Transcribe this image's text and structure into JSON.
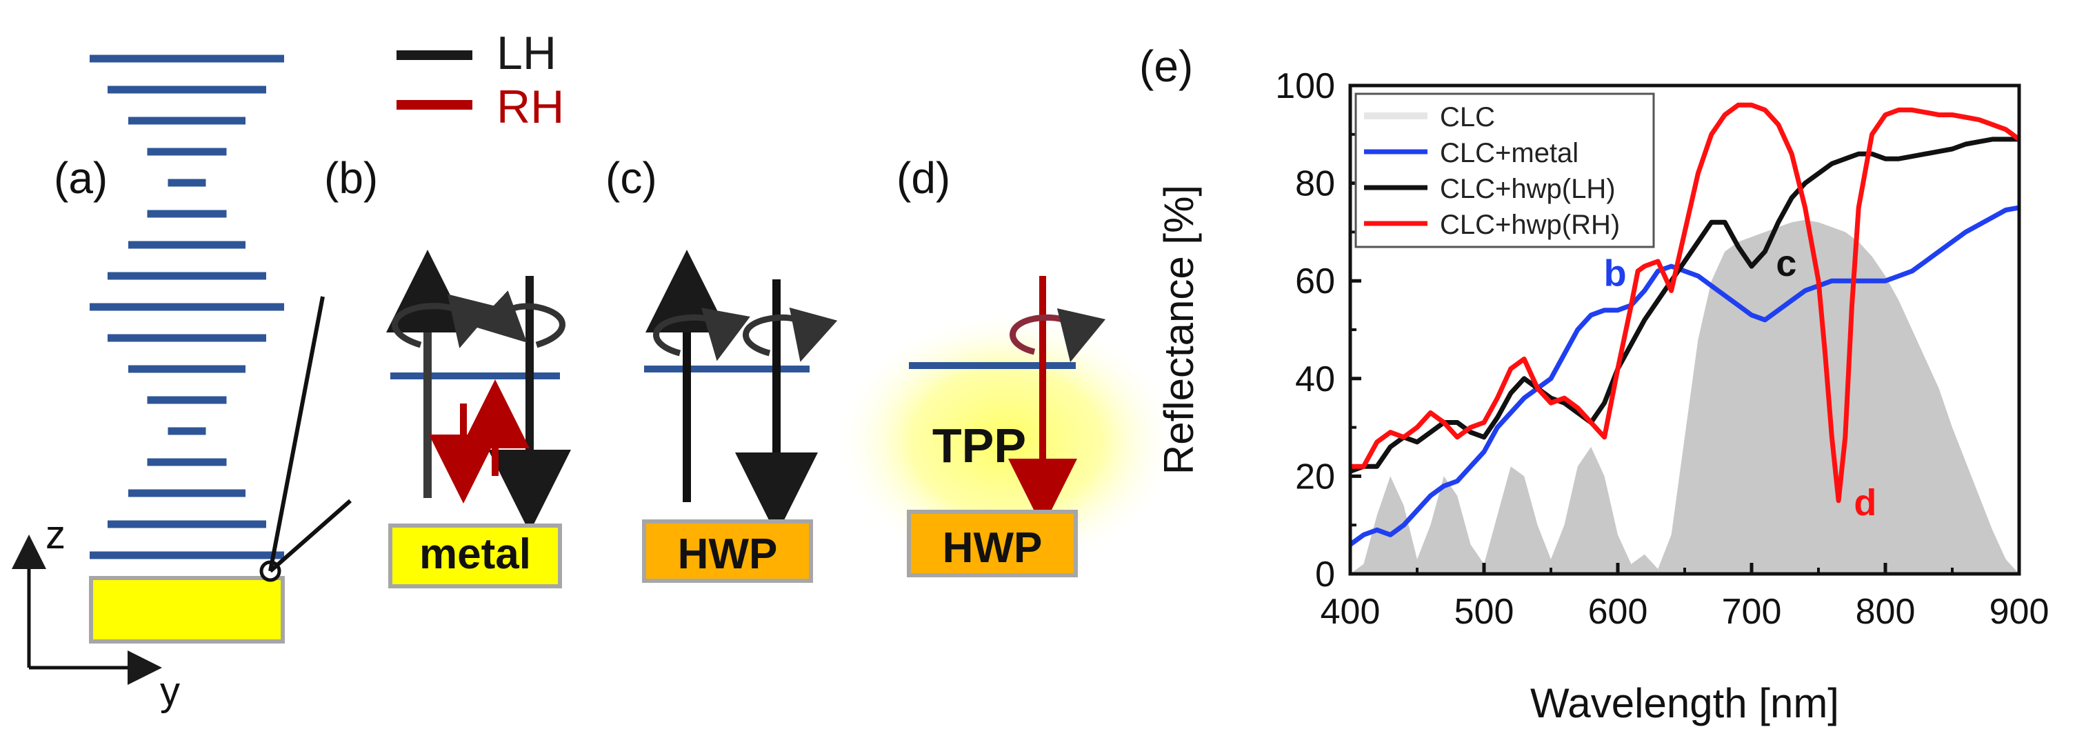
{
  "legend_top": {
    "items": [
      {
        "label": "LH",
        "color": "#1a1a1a"
      },
      {
        "label": "RH",
        "color": "#b00000"
      }
    ]
  },
  "panels": {
    "a": {
      "label": "(a)",
      "axis_z": "z",
      "axis_y": "y"
    },
    "b": {
      "label": "(b)",
      "substrate": "metal",
      "substrate_color": "#ffff00"
    },
    "c": {
      "label": "(c)",
      "substrate": "HWP",
      "substrate_color": "#ffb000"
    },
    "d": {
      "label": "(d)",
      "substrate": "HWP",
      "substrate_color": "#ffb000",
      "mode_label": "TPP"
    },
    "e": {
      "label": "(e)"
    }
  },
  "colors": {
    "layer": "#2e5597",
    "lh": "#1a1a1a",
    "rh": "#b00000",
    "substrate_border": "#a6a6a6",
    "clc_fill": "#c8c8c8"
  },
  "chart_data": {
    "type": "line",
    "xlabel": "Wavelength [nm]",
    "ylabel": "Reflectance [%]",
    "xlim": [
      400,
      900
    ],
    "ylim": [
      0,
      100
    ],
    "xticks": [
      400,
      500,
      600,
      700,
      800,
      900
    ],
    "yticks": [
      0,
      20,
      40,
      60,
      80,
      100
    ],
    "legend": {
      "placement": "top-left"
    },
    "series": [
      {
        "name": "CLC",
        "color": "#c0c0c0",
        "style": "area",
        "x": [
          400,
          410,
          420,
          430,
          440,
          450,
          460,
          470,
          480,
          490,
          500,
          510,
          520,
          530,
          540,
          550,
          560,
          570,
          580,
          590,
          600,
          610,
          620,
          630,
          640,
          650,
          660,
          670,
          680,
          690,
          700,
          710,
          720,
          730,
          740,
          750,
          760,
          770,
          780,
          790,
          800,
          810,
          820,
          830,
          840,
          850,
          860,
          870,
          880,
          890,
          900
        ],
        "y": [
          0,
          2,
          12,
          20,
          14,
          3,
          10,
          20,
          16,
          6,
          2,
          12,
          22,
          20,
          10,
          3,
          10,
          22,
          26,
          20,
          8,
          2,
          4,
          1,
          8,
          28,
          48,
          60,
          66,
          68,
          69,
          70,
          71,
          72,
          72.5,
          72,
          71,
          70,
          68,
          65,
          61,
          56,
          50,
          44,
          38,
          30,
          23,
          16,
          9,
          3,
          0
        ]
      },
      {
        "name": "CLC+metal",
        "color": "#1f3ff0",
        "x": [
          400,
          410,
          420,
          430,
          440,
          450,
          460,
          470,
          480,
          490,
          500,
          510,
          520,
          530,
          540,
          550,
          560,
          570,
          580,
          590,
          600,
          610,
          620,
          630,
          640,
          650,
          660,
          670,
          680,
          690,
          700,
          710,
          720,
          730,
          740,
          750,
          760,
          770,
          780,
          790,
          800,
          810,
          820,
          830,
          840,
          850,
          860,
          870,
          880,
          890,
          900
        ],
        "y": [
          6,
          8,
          9,
          8,
          10,
          13,
          16,
          18,
          19,
          22,
          25,
          30,
          33,
          36,
          38,
          40,
          45,
          50,
          53,
          54,
          54,
          55,
          58,
          62,
          63,
          62,
          61,
          59,
          57,
          55,
          53,
          52,
          54,
          56,
          58,
          59,
          60,
          60,
          60,
          60,
          60,
          61,
          62,
          64,
          66,
          68,
          70,
          71.5,
          73,
          74.5,
          75
        ]
      },
      {
        "name": "CLC+hwp(LH)",
        "color": "#111111",
        "x": [
          400,
          410,
          420,
          430,
          440,
          450,
          460,
          470,
          480,
          490,
          500,
          510,
          520,
          530,
          540,
          550,
          560,
          570,
          580,
          590,
          600,
          610,
          620,
          630,
          640,
          650,
          660,
          670,
          680,
          690,
          700,
          710,
          720,
          730,
          740,
          750,
          760,
          770,
          780,
          790,
          800,
          810,
          820,
          830,
          840,
          850,
          860,
          870,
          880,
          890,
          900
        ],
        "y": [
          21,
          22,
          22,
          26,
          28,
          27,
          29,
          31,
          31,
          29,
          28,
          32,
          37,
          40,
          38,
          36,
          35,
          33,
          31,
          35,
          42,
          47,
          52,
          56,
          60,
          64,
          68,
          72,
          72,
          67,
          63,
          66,
          72,
          77,
          80,
          82,
          84,
          85,
          86,
          86,
          85,
          85,
          85.5,
          86,
          86.5,
          87,
          88,
          88.5,
          89,
          89,
          89
        ]
      },
      {
        "name": "CLC+hwp(RH)",
        "color": "#ff1010",
        "x": [
          400,
          410,
          420,
          430,
          440,
          450,
          460,
          470,
          480,
          490,
          500,
          510,
          520,
          530,
          540,
          550,
          560,
          570,
          580,
          590,
          600,
          610,
          615,
          620,
          630,
          640,
          650,
          660,
          670,
          680,
          690,
          700,
          710,
          720,
          730,
          740,
          750,
          755,
          760,
          765,
          770,
          775,
          780,
          790,
          800,
          810,
          820,
          830,
          840,
          850,
          860,
          870,
          880,
          890,
          900
        ],
        "y": [
          22,
          22,
          27,
          29,
          28,
          30,
          33,
          31,
          28,
          30,
          31,
          36,
          42,
          44,
          38,
          35,
          36,
          34,
          31,
          28,
          42,
          55,
          62,
          63,
          64,
          58,
          70,
          82,
          90,
          94,
          96,
          96,
          95,
          92,
          86,
          75,
          60,
          45,
          28,
          15,
          28,
          55,
          75,
          90,
          94,
          95,
          95,
          94.5,
          94,
          94,
          93.5,
          93,
          92,
          91,
          89
        ]
      }
    ],
    "annotations": [
      {
        "text": "b",
        "color": "#1f3ff0",
        "x": 598,
        "y": 59
      },
      {
        "text": "c",
        "color": "#111111",
        "x": 726,
        "y": 61
      },
      {
        "text": "d",
        "color": "#ff1010",
        "x": 785,
        "y": 12
      }
    ]
  }
}
